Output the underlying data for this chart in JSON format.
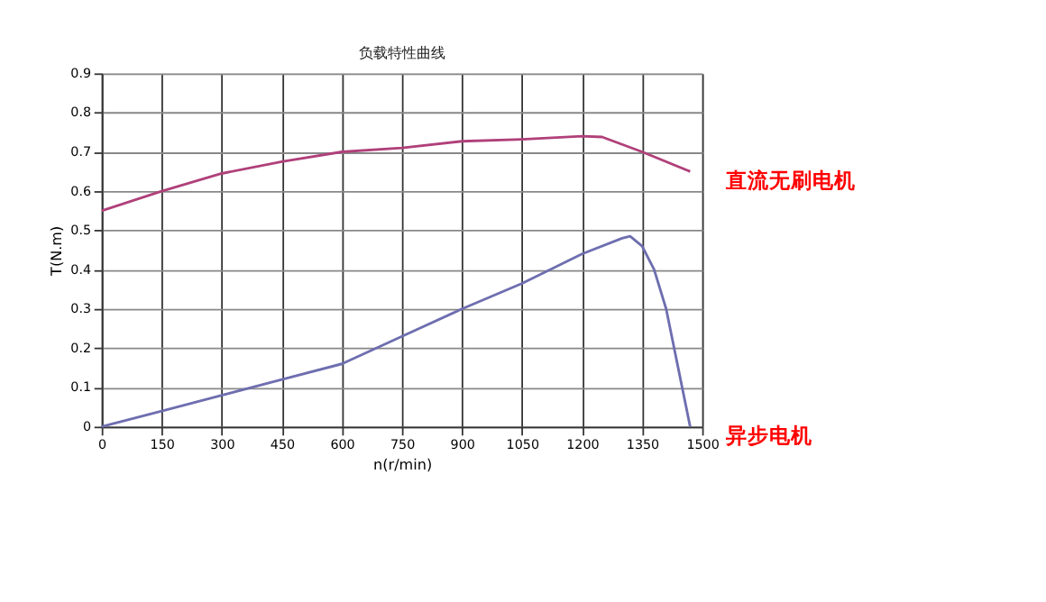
{
  "chart_data": {
    "type": "line",
    "title": "负载特性曲线",
    "xlabel": "n(r/min)",
    "ylabel": "T(N.m)",
    "xlim": [
      0,
      1500
    ],
    "xticks": [
      0,
      150,
      300,
      450,
      600,
      750,
      900,
      1050,
      1200,
      1350,
      1500
    ],
    "ylim": [
      0,
      0.9
    ],
    "yticks": [
      0,
      0.1,
      0.2,
      0.3,
      0.4,
      0.5,
      0.6,
      0.7,
      0.8,
      0.9
    ],
    "grid": true,
    "marker": "none",
    "line_style": "solid",
    "legend": false,
    "series": [
      {
        "name": "直流无刷电机",
        "color": "#b0407a",
        "x": [
          0,
          150,
          300,
          450,
          600,
          750,
          900,
          1050,
          1200,
          1250,
          1350,
          1470
        ],
        "values": [
          0.55,
          0.6,
          0.645,
          0.675,
          0.7,
          0.71,
          0.727,
          0.732,
          0.74,
          0.738,
          0.7,
          0.65
        ]
      },
      {
        "name": "异步电机",
        "color": "#6e6eb0",
        "x": [
          0,
          150,
          300,
          450,
          600,
          750,
          900,
          1050,
          1200,
          1300,
          1320,
          1350,
          1380,
          1410,
          1440,
          1470
        ],
        "values": [
          0,
          0.04,
          0.08,
          0.12,
          0.16,
          0.23,
          0.3,
          0.365,
          0.44,
          0.48,
          0.485,
          0.46,
          0.4,
          0.3,
          0.15,
          0
        ]
      }
    ]
  }
}
